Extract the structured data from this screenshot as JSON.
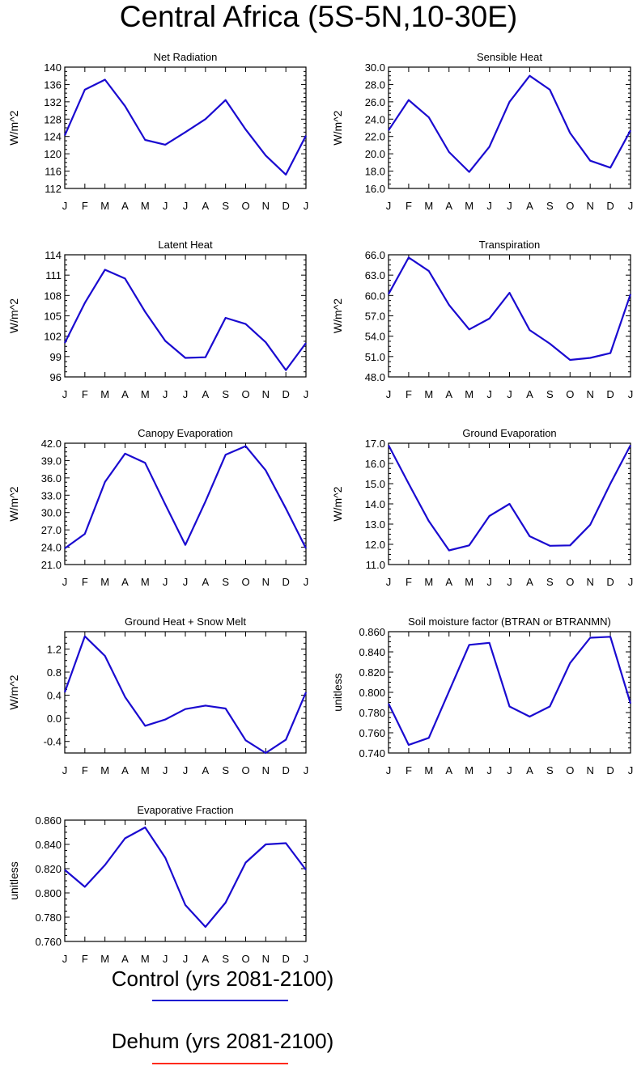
{
  "title": "Central Africa (5S-5N,10-30E)",
  "months": [
    "J",
    "F",
    "M",
    "A",
    "M",
    "J",
    "J",
    "A",
    "S",
    "O",
    "N",
    "D",
    "J"
  ],
  "colors": {
    "control": "#1a0ad0",
    "dehum": "#ff2a1a",
    "axis": "#000000"
  },
  "legend": [
    {
      "label": "Control (yrs 2081-2100)",
      "color": "#1a0ad0"
    },
    {
      "label": "Dehum (yrs 2081-2100)",
      "color": "#ff2a1a"
    }
  ],
  "chart_data": [
    {
      "type": "line",
      "title": "Net Radiation",
      "ylabel": "W/m^2",
      "ylim": [
        112,
        140
      ],
      "yticks": [
        "112",
        "116",
        "120",
        "124",
        "128",
        "132",
        "136",
        "140"
      ],
      "categories": [
        "J",
        "F",
        "M",
        "A",
        "M",
        "J",
        "J",
        "A",
        "S",
        "O",
        "N",
        "D",
        "J"
      ],
      "series": [
        {
          "values": [
            124.2,
            134.8,
            137.1,
            131.0,
            123.2,
            122.1,
            125.0,
            128.0,
            132.4,
            125.6,
            119.6,
            115.2,
            124.2
          ]
        }
      ]
    },
    {
      "type": "line",
      "title": "Sensible Heat",
      "ylabel": "W/m^2",
      "ylim": [
        16,
        30
      ],
      "yticks": [
        "16.0",
        "18.0",
        "20.0",
        "22.0",
        "24.0",
        "26.0",
        "28.0",
        "30.0"
      ],
      "categories": [
        "J",
        "F",
        "M",
        "A",
        "M",
        "J",
        "J",
        "A",
        "S",
        "O",
        "N",
        "D",
        "J"
      ],
      "series": [
        {
          "values": [
            22.7,
            26.2,
            24.2,
            20.2,
            17.9,
            20.8,
            26.0,
            29.0,
            27.4,
            22.4,
            19.2,
            18.4,
            22.7
          ]
        }
      ]
    },
    {
      "type": "line",
      "title": "Latent Heat",
      "ylabel": "W/m^2",
      "ylim": [
        96,
        114
      ],
      "yticks": [
        "96",
        "99",
        "102",
        "105",
        "108",
        "111",
        "114"
      ],
      "categories": [
        "J",
        "F",
        "M",
        "A",
        "M",
        "J",
        "J",
        "A",
        "S",
        "O",
        "N",
        "D",
        "J"
      ],
      "series": [
        {
          "values": [
            101.0,
            106.9,
            111.8,
            110.5,
            105.6,
            101.3,
            98.8,
            98.9,
            104.7,
            103.8,
            101.1,
            97.0,
            101.0
          ]
        }
      ]
    },
    {
      "type": "line",
      "title": "Transpiration",
      "ylabel": "W/m^2",
      "ylim": [
        48,
        66
      ],
      "yticks": [
        "48.0",
        "51.0",
        "54.0",
        "57.0",
        "60.0",
        "63.0",
        "66.0"
      ],
      "categories": [
        "J",
        "F",
        "M",
        "A",
        "M",
        "J",
        "J",
        "A",
        "S",
        "O",
        "N",
        "D",
        "J"
      ],
      "series": [
        {
          "values": [
            60.2,
            65.6,
            63.6,
            58.6,
            55.0,
            56.6,
            60.4,
            54.9,
            52.9,
            50.5,
            50.8,
            51.5,
            60.2
          ]
        }
      ]
    },
    {
      "type": "line",
      "title": "Canopy Evaporation",
      "ylabel": "W/m^2",
      "ylim": [
        21,
        42
      ],
      "yticks": [
        "21.0",
        "24.0",
        "27.0",
        "30.0",
        "33.0",
        "36.0",
        "39.0",
        "42.0"
      ],
      "categories": [
        "J",
        "F",
        "M",
        "A",
        "M",
        "J",
        "J",
        "A",
        "S",
        "O",
        "N",
        "D",
        "J"
      ],
      "series": [
        {
          "values": [
            23.8,
            26.3,
            35.3,
            40.2,
            38.6,
            31.4,
            24.4,
            31.9,
            40.0,
            41.5,
            37.3,
            30.7,
            23.8
          ]
        }
      ]
    },
    {
      "type": "line",
      "title": "Ground Evaporation",
      "ylabel": "W/m^2",
      "ylim": [
        11,
        17
      ],
      "yticks": [
        "11.0",
        "12.0",
        "13.0",
        "14.0",
        "15.0",
        "16.0",
        "17.0"
      ],
      "categories": [
        "J",
        "F",
        "M",
        "A",
        "M",
        "J",
        "J",
        "A",
        "S",
        "O",
        "N",
        "D",
        "J"
      ],
      "series": [
        {
          "values": [
            16.9,
            15.0,
            13.15,
            11.7,
            11.95,
            13.4,
            14.0,
            12.4,
            11.93,
            11.95,
            12.97,
            15.0,
            16.9
          ]
        }
      ]
    },
    {
      "type": "line",
      "title": "Ground Heat + Snow Melt",
      "ylabel": "W/m^2",
      "ylim": [
        -0.6,
        1.5
      ],
      "yticks": [
        "-0.4",
        "0.0",
        "0.4",
        "0.8",
        "1.2"
      ],
      "ytickvals": [
        -0.4,
        0.0,
        0.4,
        0.8,
        1.2
      ],
      "categories": [
        "J",
        "F",
        "M",
        "A",
        "M",
        "J",
        "J",
        "A",
        "S",
        "O",
        "N",
        "D",
        "J"
      ],
      "series": [
        {
          "values": [
            0.45,
            1.42,
            1.08,
            0.37,
            -0.13,
            -0.02,
            0.16,
            0.22,
            0.17,
            -0.38,
            -0.6,
            -0.37,
            0.45
          ]
        }
      ]
    },
    {
      "type": "line",
      "title": "Soil moisture factor (BTRAN or BTRANMN)",
      "ylabel": "unitless",
      "ylim": [
        0.74,
        0.86
      ],
      "yticks": [
        "0.740",
        "0.760",
        "0.780",
        "0.800",
        "0.820",
        "0.840",
        "0.860"
      ],
      "categories": [
        "J",
        "F",
        "M",
        "A",
        "M",
        "J",
        "J",
        "A",
        "S",
        "O",
        "N",
        "D",
        "J"
      ],
      "series": [
        {
          "values": [
            0.789,
            0.748,
            0.755,
            0.801,
            0.847,
            0.849,
            0.786,
            0.776,
            0.786,
            0.829,
            0.854,
            0.855,
            0.789
          ]
        }
      ]
    },
    {
      "type": "line",
      "title": "Evaporative Fraction",
      "ylabel": "unitless",
      "ylim": [
        0.76,
        0.86
      ],
      "yticks": [
        "0.760",
        "0.780",
        "0.800",
        "0.820",
        "0.840",
        "0.860"
      ],
      "categories": [
        "J",
        "F",
        "M",
        "A",
        "M",
        "J",
        "J",
        "A",
        "S",
        "O",
        "N",
        "D",
        "J"
      ],
      "series": [
        {
          "values": [
            0.819,
            0.805,
            0.823,
            0.845,
            0.854,
            0.829,
            0.79,
            0.772,
            0.792,
            0.825,
            0.84,
            0.841,
            0.819
          ]
        }
      ]
    }
  ]
}
